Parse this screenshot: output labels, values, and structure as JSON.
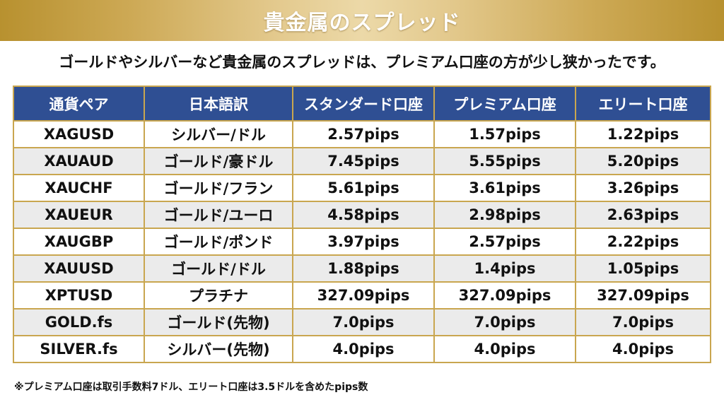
{
  "banner": {
    "title": "貴金属のスプレッド"
  },
  "subtitle": "ゴールドやシルバーなど貴金属のスプレッドは、プレミアム口座の方が少し狭かったです。",
  "table": {
    "headers": [
      "通貨ペア",
      "日本語訳",
      "スタンダード口座",
      "プレミアム口座",
      "エリート口座"
    ],
    "rows": [
      [
        "XAGUSD",
        "シルバー/ドル",
        "2.57pips",
        "1.57pips",
        "1.22pips"
      ],
      [
        "XAUAUD",
        "ゴールド/豪ドル",
        "7.45pips",
        "5.55pips",
        "5.20pips"
      ],
      [
        "XAUCHF",
        "ゴールド/フラン",
        "5.61pips",
        "3.61pips",
        "3.26pips"
      ],
      [
        "XAUEUR",
        "ゴールド/ユーロ",
        "4.58pips",
        "2.98pips",
        "2.63pips"
      ],
      [
        "XAUGBP",
        "ゴールド/ポンド",
        "3.97pips",
        "2.57pips",
        "2.22pips"
      ],
      [
        "XAUUSD",
        "ゴールド/ドル",
        "1.88pips",
        "1.4pips",
        "1.05pips"
      ],
      [
        "XPTUSD",
        "プラチナ",
        "327.09pips",
        "327.09pips",
        "327.09pips"
      ],
      [
        "GOLD.fs",
        "ゴールド(先物)",
        "7.0pips",
        "7.0pips",
        "7.0pips"
      ],
      [
        "SILVER.fs",
        "シルバー(先物)",
        "4.0pips",
        "4.0pips",
        "4.0pips"
      ]
    ]
  },
  "footnote": "※プレミアム口座は取引手数料7ドル、エリート口座は3.5ドルを含めたpips数",
  "colors": {
    "header_bg": "#2f4f93",
    "border_gold": "#c9a64f",
    "row_alt": "#ebebeb"
  }
}
